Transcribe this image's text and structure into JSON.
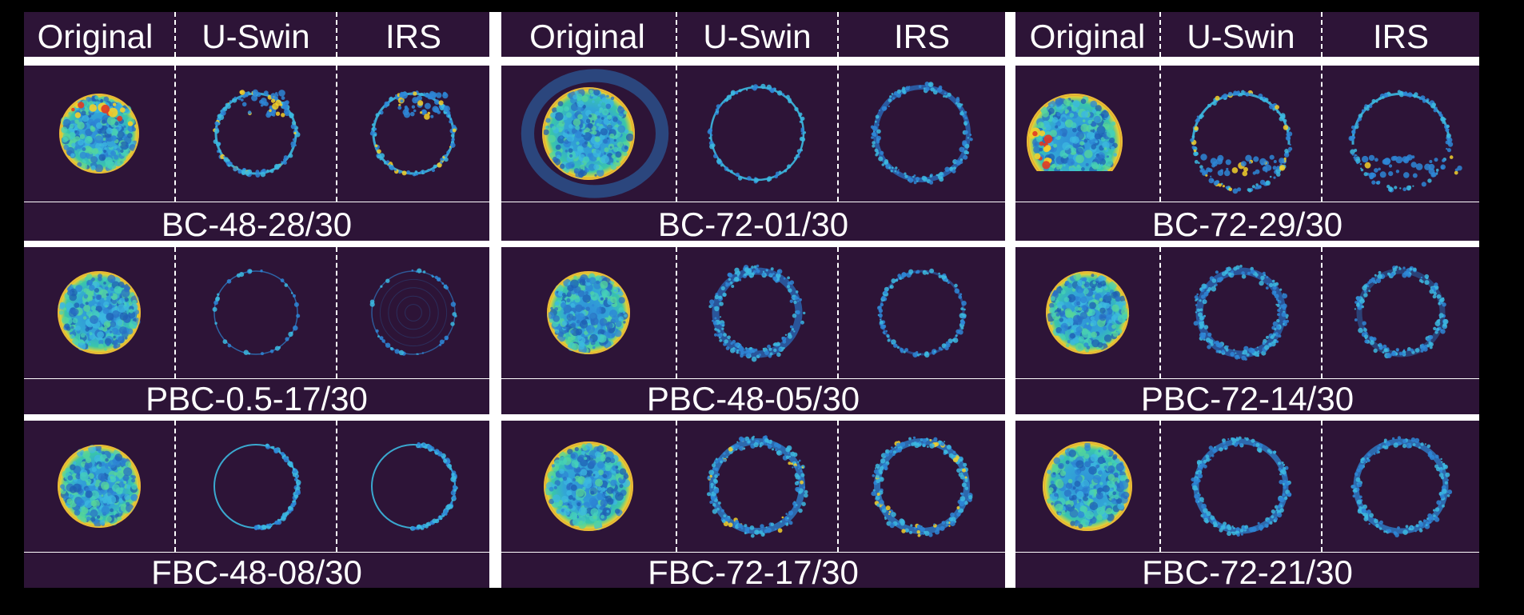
{
  "headers": [
    "Original",
    "U-Swin",
    "IRS"
  ],
  "columns": [
    {
      "rows": [
        {
          "caption": "BC-48-28/30",
          "variant": "bc-a"
        },
        {
          "caption": "PBC-0.5-17/30",
          "variant": "pbc-a"
        },
        {
          "caption": "FBC-48-08/30",
          "variant": "fbc-a"
        }
      ]
    },
    {
      "rows": [
        {
          "caption": "BC-72-01/30",
          "variant": "bc-b"
        },
        {
          "caption": "PBC-48-05/30",
          "variant": "pbc-b"
        },
        {
          "caption": "FBC-72-17/30",
          "variant": "fbc-b"
        }
      ]
    },
    {
      "rows": [
        {
          "caption": "BC-72-29/30",
          "variant": "bc-c"
        },
        {
          "caption": "PBC-72-14/30",
          "variant": "pbc-c"
        },
        {
          "caption": "FBC-72-21/30",
          "variant": "fbc-c"
        }
      ]
    }
  ],
  "colors": {
    "background": "#2d1437",
    "frame": "#ffffff",
    "outside": "#000000",
    "map_low": "#2d1437",
    "map_mid": "#2f8fd8",
    "map_green": "#3ad0a0",
    "map_high": "#f3d02a",
    "map_peak": "#e23a22"
  }
}
